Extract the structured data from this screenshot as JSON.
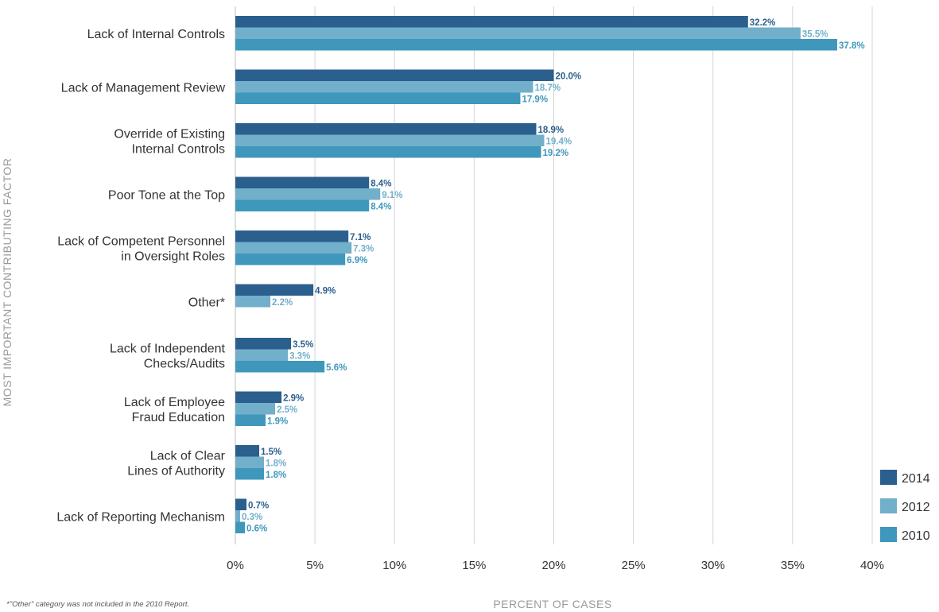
{
  "chart_data": {
    "type": "bar",
    "orientation": "horizontal",
    "title": "",
    "xlabel": "PERCENT OF CASES",
    "ylabel": "MOST IMPORTANT CONTRIBUTING FACTOR",
    "xlim": [
      0,
      40
    ],
    "xticks": [
      "0%",
      "5%",
      "10%",
      "15%",
      "20%",
      "25%",
      "30%",
      "35%",
      "40%"
    ],
    "grid": "vertical",
    "legend_position": "bottom-right",
    "categories": [
      [
        "Lack of Internal Controls"
      ],
      [
        "Lack of Management Review"
      ],
      [
        "Override of Existing",
        "Internal Controls"
      ],
      [
        "Poor Tone at the Top"
      ],
      [
        "Lack of Competent Personnel",
        "in Oversight Roles"
      ],
      [
        "Other*"
      ],
      [
        "Lack of Independent",
        "Checks/Audits"
      ],
      [
        "Lack of Employee",
        "Fraud Education"
      ],
      [
        "Lack of Clear",
        "Lines of Authority"
      ],
      [
        "Lack of Reporting Mechanism"
      ]
    ],
    "series": [
      {
        "name": "2014",
        "color": "#2b5f8e",
        "label_color": "#2b5f8e",
        "values": [
          32.2,
          20.0,
          18.9,
          8.4,
          7.1,
          4.9,
          3.5,
          2.9,
          1.5,
          0.7
        ]
      },
      {
        "name": "2012",
        "color": "#72afcb",
        "label_color": "#72afcb",
        "values": [
          35.5,
          18.7,
          19.4,
          9.1,
          7.3,
          2.2,
          3.3,
          2.5,
          1.8,
          0.3
        ]
      },
      {
        "name": "2010",
        "color": "#3f97bc",
        "label_color": "#3f97bc",
        "values": [
          37.8,
          17.9,
          19.2,
          8.4,
          6.9,
          null,
          5.6,
          1.9,
          1.8,
          0.6
        ]
      }
    ]
  },
  "footnote": "*\"Other\" category was not included in the 2010 Report."
}
